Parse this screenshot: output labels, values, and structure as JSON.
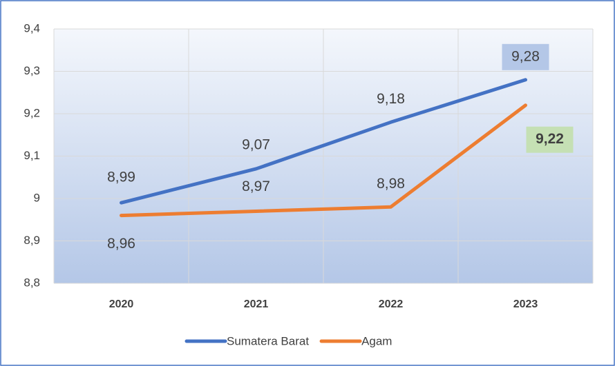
{
  "chart_data": {
    "type": "line",
    "categories": [
      "2020",
      "2021",
      "2022",
      "2023"
    ],
    "series": [
      {
        "name": "Sumatera Barat",
        "color": "#4472c4",
        "values": [
          8.99,
          9.07,
          9.18,
          9.28
        ],
        "value_labels": [
          "8,99",
          "9,07",
          "9,18",
          "9,28"
        ]
      },
      {
        "name": "Agam",
        "color": "#ed7d31",
        "values": [
          8.96,
          8.97,
          8.98,
          9.22
        ],
        "value_labels": [
          "8,96",
          "8,97",
          "8,98",
          "9,22"
        ]
      }
    ],
    "ylim": [
      8.8,
      9.4
    ],
    "yticks": [
      {
        "value": 8.8,
        "label": "8,8"
      },
      {
        "value": 8.9,
        "label": "8,9"
      },
      9,
      {
        "value": 9.1,
        "label": "9,1"
      },
      {
        "value": 9.2,
        "label": "9,2"
      },
      {
        "value": 9.3,
        "label": "9,3"
      },
      {
        "value": 9.4,
        "label": "9,4"
      }
    ],
    "grid": true,
    "legend": "bottom"
  }
}
